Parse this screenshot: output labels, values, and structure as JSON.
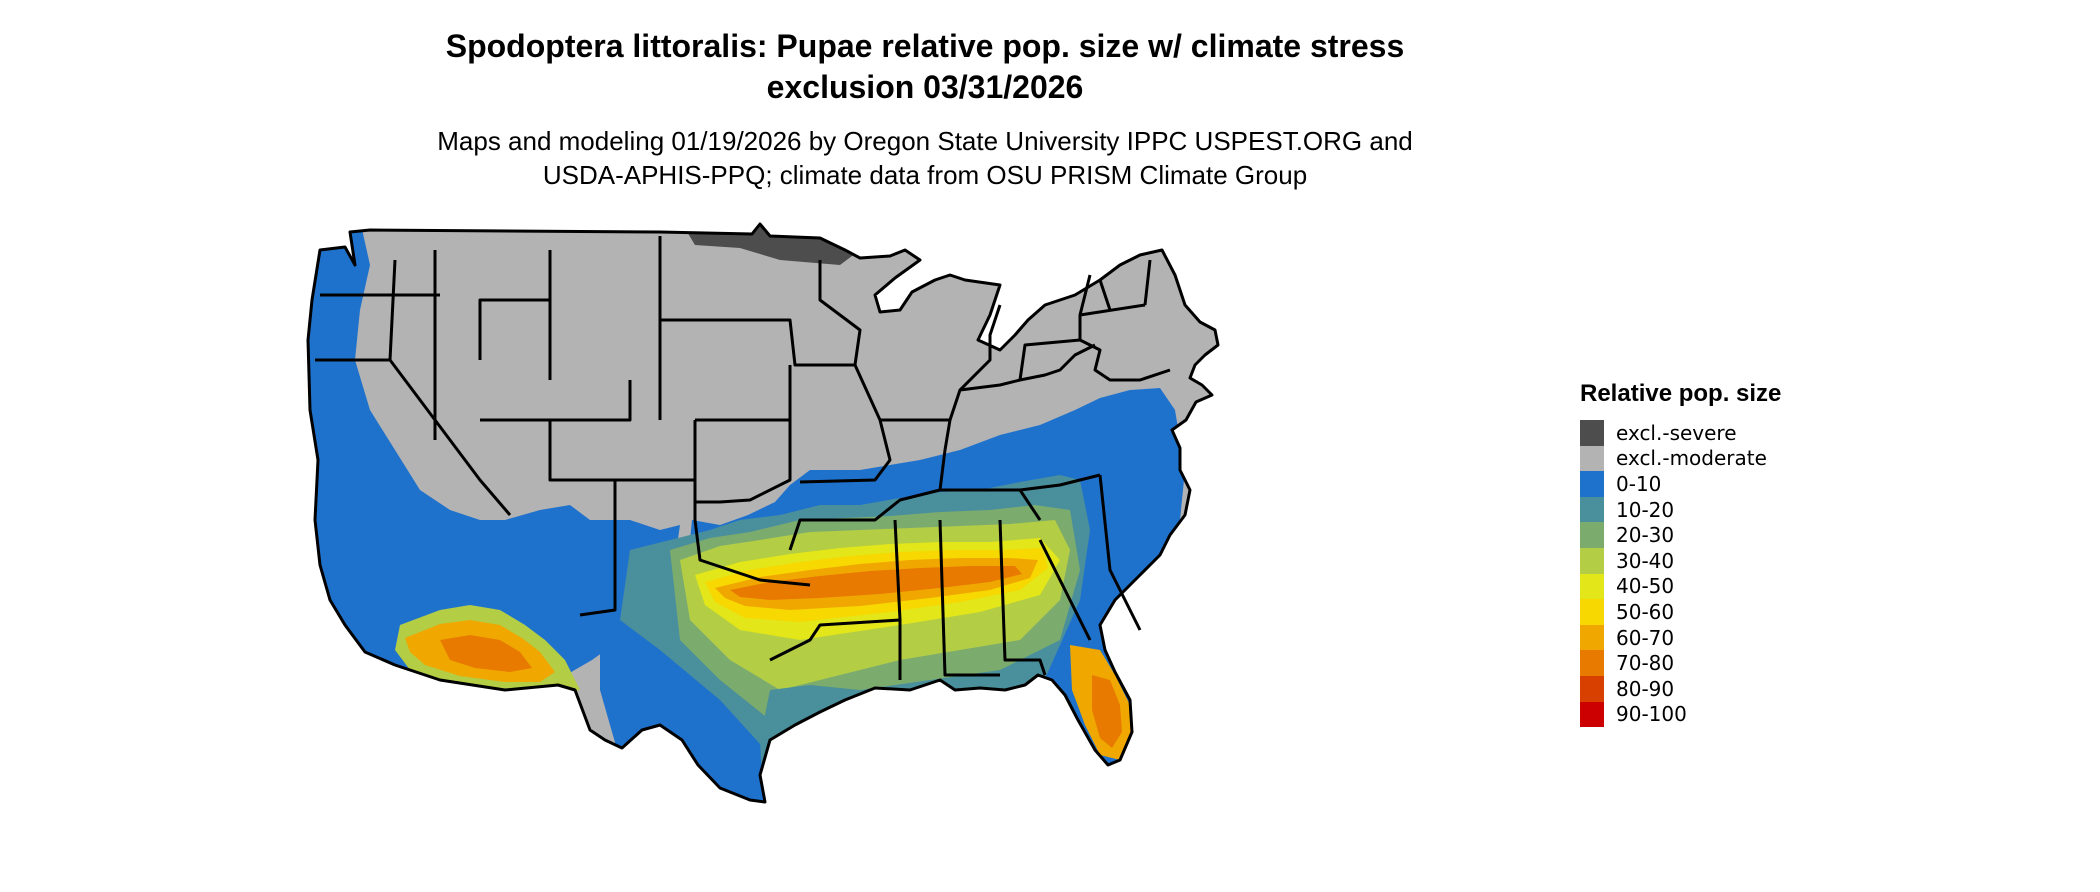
{
  "title": {
    "line1": "Spodoptera littoralis: Pupae relative pop. size w/ climate stress",
    "line2": "exclusion 03/31/2026"
  },
  "subtitle": {
    "line1": "Maps and modeling 01/19/2026 by Oregon State University IPPC USPEST.ORG and",
    "line2": "USDA-APHIS-PPQ; climate data from OSU PRISM Climate Group"
  },
  "legend": {
    "title": "Relative pop. size",
    "items": [
      {
        "label": "excl.-severe",
        "color": "#4d4d4d"
      },
      {
        "label": "excl.-moderate",
        "color": "#b3b3b3"
      },
      {
        "label": "0-10",
        "color": "#1f72cc"
      },
      {
        "label": "10-20",
        "color": "#4a8f9c"
      },
      {
        "label": "20-30",
        "color": "#7cab6e"
      },
      {
        "label": "30-40",
        "color": "#b3cd45"
      },
      {
        "label": "40-50",
        "color": "#e3e619"
      },
      {
        "label": "50-60",
        "color": "#f7d800"
      },
      {
        "label": "60-70",
        "color": "#f0a800"
      },
      {
        "label": "70-80",
        "color": "#e87a00"
      },
      {
        "label": "80-90",
        "color": "#d84000"
      },
      {
        "label": "90-100",
        "color": "#cc0000"
      }
    ]
  }
}
